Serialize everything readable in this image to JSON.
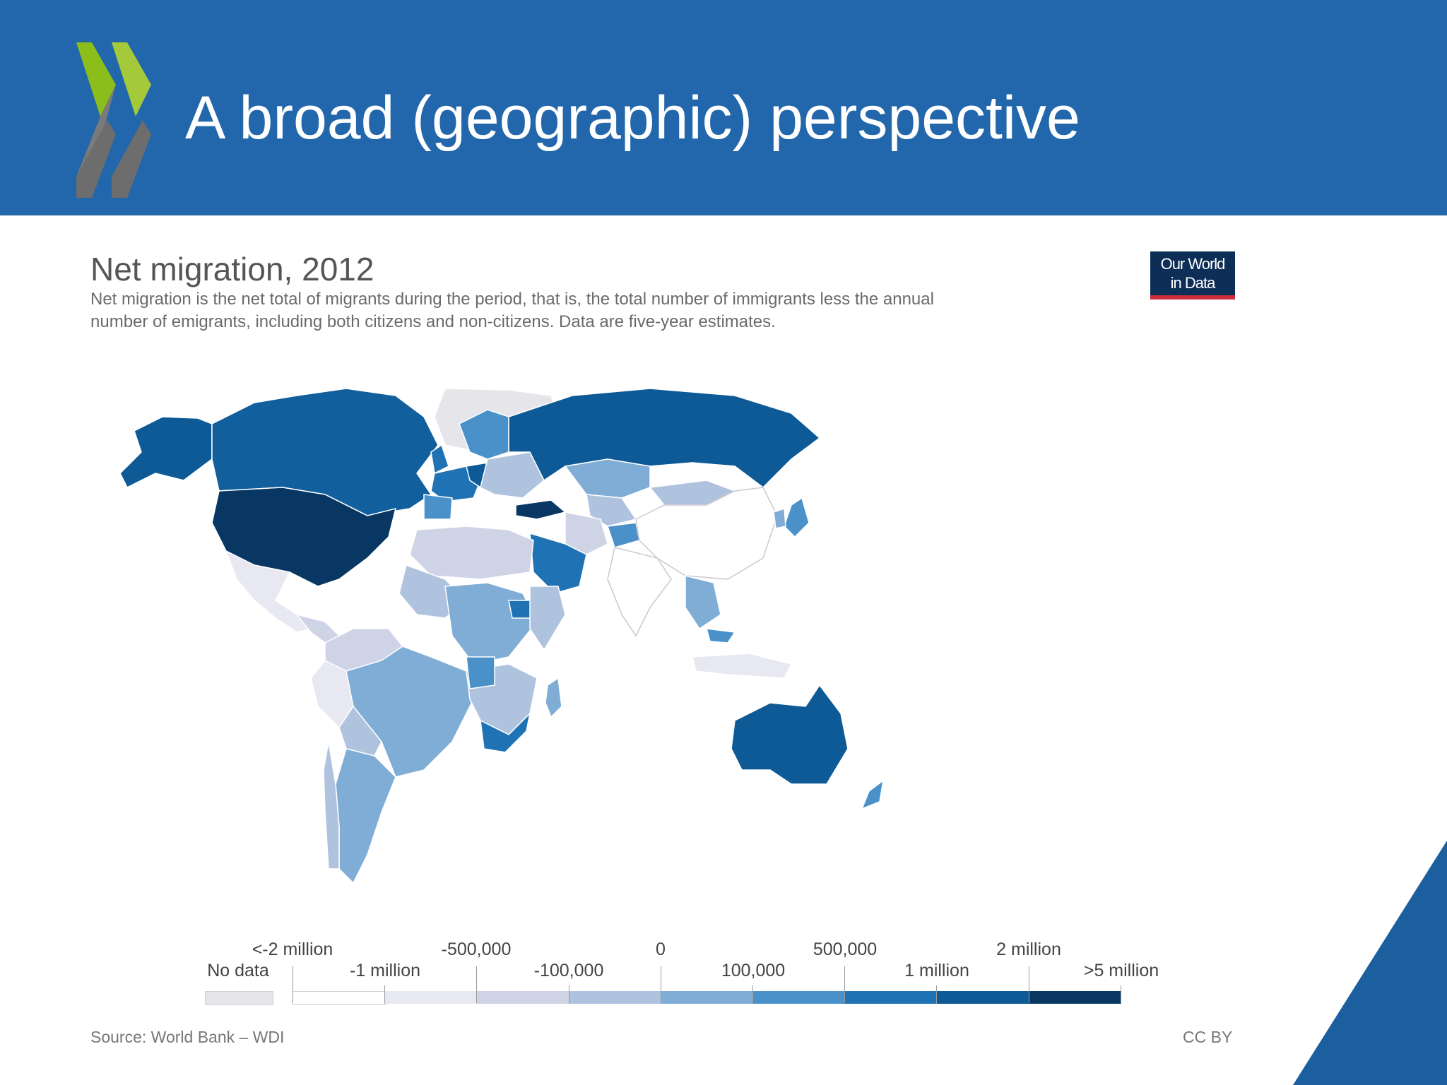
{
  "slide": {
    "title": "A broad (geographic) perspective",
    "header_color": "#2267ab"
  },
  "chart": {
    "title": "Net migration, 2012",
    "subtitle_lines": [
      "Net migration is the net total of migrants during the period, that is, the total number of immigrants less the annual",
      "number of emigrants, including both citizens and non-citizens. Data are five-year estimates."
    ],
    "badge_lines": [
      "Our World",
      "in Data"
    ],
    "source": "Source: World Bank – WDI",
    "license": "CC BY"
  },
  "chart_data": {
    "type": "choropleth",
    "title": "Net migration, 2012",
    "year": "2012",
    "legend": {
      "no_data_label": "No data",
      "no_data_color": "#e6e6ea",
      "upper_labels": [
        "<-2 million",
        "-500,000",
        "0",
        "500,000",
        "2 million"
      ],
      "lower_labels": [
        "-1 million",
        "-100,000",
        "100,000",
        "1 million",
        ">5 million"
      ],
      "bins": [
        {
          "range": "<-2 million to -1 million",
          "color": "#ffffff"
        },
        {
          "range": "-1 million to -500,000",
          "color": "#e8e8f2"
        },
        {
          "range": "-500,000 to -100,000",
          "color": "#ced3e6"
        },
        {
          "range": "-100,000 to 0",
          "color": "#b0c3de"
        },
        {
          "range": "0 to 100,000",
          "color": "#7fadd6"
        },
        {
          "range": "100,000 to 500,000",
          "color": "#4a91c9"
        },
        {
          "range": "500,000 to 1 million",
          "color": "#1f73b4"
        },
        {
          "range": "1 million to 2 million",
          "color": "#0d5a96"
        },
        {
          "range": "2 million to >5 million",
          "color": "#083763"
        }
      ]
    },
    "regions": [
      {
        "name": "United States",
        "bin": "2 million to >5 million"
      },
      {
        "name": "Turkey",
        "bin": "2 million to >5 million"
      },
      {
        "name": "Canada",
        "bin": "1 million to 2 million"
      },
      {
        "name": "Russia",
        "bin": "1 million to 2 million"
      },
      {
        "name": "Australia",
        "bin": "1 million to 2 million"
      },
      {
        "name": "Saudi Arabia",
        "bin": "500,000 to 1 million"
      },
      {
        "name": "Germany",
        "bin": "1 million to 2 million"
      },
      {
        "name": "South Africa",
        "bin": "500,000 to 1 million"
      },
      {
        "name": "China",
        "bin": "<-2 million to -1 million"
      },
      {
        "name": "India",
        "bin": "<-2 million to -1 million"
      },
      {
        "name": "Greenland",
        "bin": "No data"
      }
    ]
  }
}
